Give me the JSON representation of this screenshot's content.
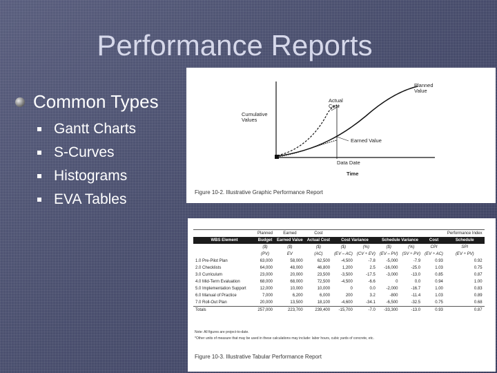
{
  "slide": {
    "title": "Performance Reports",
    "main_bullet": "Common Types",
    "sub_bullets": [
      "Gantt Charts",
      "S-Curves",
      "Histograms",
      "EVA Tables"
    ]
  },
  "figure_graphic": {
    "caption": "Figure 10-2.  Illustrative Graphic Performance Report",
    "y_label": "Cumulative Values",
    "x_label": "Time",
    "data_date": "Data Date",
    "curves": [
      "Planned Value",
      "Actual Cost",
      "Earned Value"
    ]
  },
  "figure_table": {
    "caption": "Figure 10-3.  Illustrative Tabular Performance Report",
    "group_headers": [
      "Planned",
      "Earned",
      "Cost",
      "Performance Index"
    ],
    "columns": [
      "Budget",
      "Earned Value",
      "Actual Cost",
      "Cost Variance",
      "Schedule Variance",
      "Cost",
      "Schedule"
    ],
    "first_col": "WBS Element",
    "units": [
      "($)",
      "($)",
      "($)",
      "($)",
      "(%)",
      "($)",
      "(%)",
      "CPI",
      "SPI"
    ],
    "formulas": [
      "(PV)",
      "EV",
      "(AC)",
      "(EV – AC)",
      "(CV ÷ EV)",
      "(EV – PV)",
      "(SV ÷ PV)",
      "(EV ÷ AC)",
      "(EV ÷ PV)"
    ],
    "rows": [
      [
        "1.0 Pre-Pilot Plan",
        "63,000",
        "58,000",
        "62,500",
        "-4,500",
        "-7.8",
        "-5,000",
        "-7.9",
        "0.93",
        "0.92"
      ],
      [
        "2.0 Checklists",
        "64,000",
        "48,000",
        "46,800",
        "1,200",
        "2.5",
        "-16,000",
        "-25.0",
        "1.03",
        "0.75"
      ],
      [
        "3.0 Curriculum",
        "23,000",
        "20,000",
        "23,500",
        "-3,500",
        "-17.5",
        "-3,000",
        "-13.0",
        "0.85",
        "0.87"
      ],
      [
        "4.0 Mid-Term Evaluation",
        "68,000",
        "68,000",
        "72,500",
        "-4,500",
        "-6.6",
        "0",
        "0.0",
        "0.94",
        "1.00"
      ],
      [
        "5.0 Implementation Support",
        "12,000",
        "10,000",
        "10,000",
        "0",
        "0.0",
        "-2,000",
        "-16.7",
        "1.00",
        "0.83"
      ],
      [
        "6.0 Manual of Practice",
        "7,000",
        "6,200",
        "6,000",
        "200",
        "3.2",
        "-800",
        "-11.4",
        "1.03",
        "0.89"
      ],
      [
        "7.0 Roll-Out Plan",
        "20,000",
        "13,500",
        "18,100",
        "-4,600",
        "-34.1",
        "-6,500",
        "-32.5",
        "0.75",
        "0.68"
      ]
    ],
    "totals": [
      "Totals",
      "257,000",
      "223,700",
      "239,400",
      "-15,700",
      "-7.0",
      "-33,300",
      "-13.0",
      "0.93",
      "0.87"
    ],
    "notes": [
      "Note: All figures are project-to-date.",
      "*Other units of measure that may be used in these calculations may include: labor hours, cubic yards of concrete, etc."
    ]
  }
}
